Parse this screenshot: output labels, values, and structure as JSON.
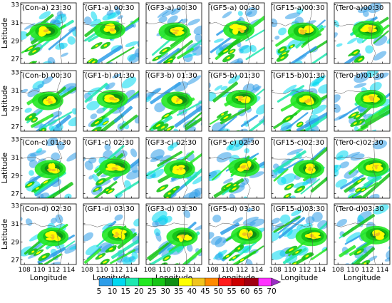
{
  "chart_data": {
    "type": "heatmap",
    "xlabel": "Longitude",
    "ylabel": "Latitude",
    "xticks": [
      "108",
      "110",
      "112",
      "114"
    ],
    "yticks": [
      "27",
      "29",
      "31",
      "33"
    ],
    "xlim": [
      107.5,
      115
    ],
    "ylim": [
      26.5,
      33.2
    ],
    "grid": false,
    "colorbar": {
      "ticks": [
        "5",
        "10",
        "15",
        "20",
        "25",
        "30",
        "35",
        "40",
        "45",
        "50",
        "55",
        "60",
        "65",
        "70"
      ],
      "colors": [
        "#2e9de8",
        "#00d8f0",
        "#1fe8b0",
        "#22e822",
        "#16c416",
        "#0f8f14",
        "#ffff00",
        "#f0c41e",
        "#ff8a00",
        "#ff1a1a",
        "#cc0000",
        "#a00010",
        "#ff30ff",
        "#9a2ec4"
      ]
    },
    "panels": [
      [
        "(Con-a) 23:30",
        "(GF1-a) 00:30",
        "(GF3-a) 00:30",
        "(GF5-a) 00:30",
        "(GF15-a)00:30",
        "(Ter0-a)00:30"
      ],
      [
        "(Con-b) 00:30",
        "(GF1-b) 01:30",
        "(GF3-b) 01:30",
        "(GF5-b) 01:30",
        "(GF15-b)01:30",
        "(Ter0-b)01:30"
      ],
      [
        "(Con-c) 01:30",
        "(GF1-c) 02:30",
        "(GF3-c) 02:30",
        "(GF5-c) 02:30",
        "(GF15-c)02:30",
        "(Ter0-c)02:30"
      ],
      [
        "(Con-d) 02:30",
        "(GF1-d) 03:30",
        "(GF3-d) 03:30",
        "(GF5-d) 03:30",
        "(GF15-d)03:30",
        "(Ter0-d)03:30"
      ]
    ]
  }
}
